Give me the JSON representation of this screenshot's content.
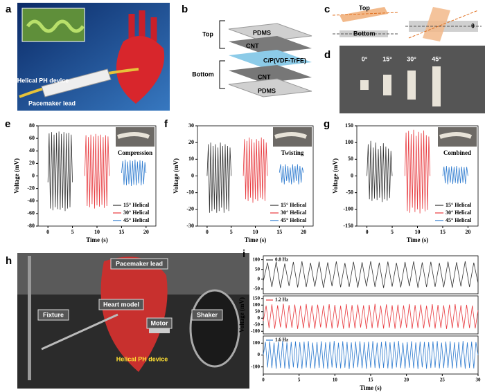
{
  "figure": {
    "letters": [
      "a",
      "b",
      "c",
      "d",
      "h"
    ],
    "a_labels": [
      "Helical PH device",
      "Pacemaker lead"
    ],
    "b_groups": [
      "Top",
      "Bottom"
    ],
    "b_layers": [
      "PDMS",
      "CNT",
      "C/P(VDF-TrFE)",
      "CNT",
      "PDMS"
    ],
    "c_labels": [
      "Top",
      "Bottom",
      "θ"
    ],
    "d_angles": [
      "0°",
      "15°",
      "30°",
      "45°"
    ],
    "h_labels": [
      "Pacemaker lead",
      "Heart model",
      "Fixture",
      "Motor",
      "Shaker",
      "Helical PH device"
    ]
  },
  "chart_data": [
    {
      "type": "line",
      "label": "e",
      "xlabel": "Time (s)",
      "ylabel": "Voltage (mV)",
      "annotation": "Compression",
      "legend": "lower right",
      "xlim": [
        -2,
        22
      ],
      "xticks": [
        0,
        5,
        10,
        15,
        20
      ],
      "ylim": [
        -80,
        80
      ],
      "yticks": [
        -80,
        -60,
        -40,
        -20,
        0,
        20,
        40,
        60,
        80
      ],
      "series": [
        {
          "name": "15° Helical",
          "color": "#333333",
          "x": [
            0,
            0.25,
            0.5,
            0.75,
            1,
            1.25,
            1.5,
            1.75,
            2,
            2.25,
            2.5,
            2.75,
            3,
            3.25,
            3.5,
            3.75,
            4,
            4.25,
            4.5,
            4.75,
            5
          ],
          "values": [
            -10,
            68,
            -52,
            70,
            -55,
            66,
            -50,
            69,
            -53,
            71,
            -54,
            67,
            -51,
            70,
            -56,
            68,
            -52,
            69,
            -50,
            66,
            -10
          ]
        },
        {
          "name": "30° Helical",
          "color": "#e8383d",
          "x": [
            7.5,
            7.75,
            8,
            8.25,
            8.5,
            8.75,
            9,
            9.25,
            9.5,
            9.75,
            10,
            10.25,
            10.5,
            10.75,
            11,
            11.25,
            11.5,
            11.75,
            12,
            12.25,
            12.5
          ],
          "values": [
            0,
            65,
            -48,
            62,
            -50,
            66,
            -45,
            63,
            -52,
            67,
            -47,
            64,
            -49,
            66,
            -46,
            62,
            -51,
            65,
            -48,
            63,
            0
          ]
        },
        {
          "name": "45° Helical",
          "color": "#2e7bcf",
          "x": [
            15,
            15.25,
            15.5,
            15.75,
            16,
            16.25,
            16.5,
            16.75,
            17,
            17.25,
            17.5,
            17.75,
            18,
            18.25,
            18.5,
            18.75,
            19,
            19.25,
            19.5,
            19.75,
            20
          ],
          "values": [
            5,
            24,
            -14,
            26,
            -15,
            23,
            -13,
            25,
            -16,
            24,
            -14,
            26,
            -15,
            23,
            -12,
            25,
            -15,
            24,
            -13,
            22,
            5
          ]
        }
      ]
    },
    {
      "type": "line",
      "label": "f",
      "xlabel": "Time (s)",
      "ylabel": "Voltage (mV)",
      "annotation": "Twisting",
      "legend": "lower right",
      "xlim": [
        -2,
        22
      ],
      "xticks": [
        0,
        5,
        10,
        15,
        20
      ],
      "ylim": [
        -30,
        30
      ],
      "yticks": [
        -30,
        -20,
        -10,
        0,
        10,
        20,
        30
      ],
      "series": [
        {
          "name": "15° Helical",
          "color": "#333333",
          "x": [
            0,
            0.25,
            0.5,
            0.75,
            1,
            1.25,
            1.5,
            1.75,
            2,
            2.25,
            2.5,
            2.75,
            3,
            3.25,
            3.5,
            3.75,
            4,
            4.25,
            4.5,
            4.75,
            5
          ],
          "values": [
            0,
            19,
            -22,
            20,
            -21,
            18,
            -20,
            19,
            -22,
            17,
            -21,
            20,
            -19,
            18,
            -22,
            19,
            -20,
            18,
            -21,
            17,
            0
          ]
        },
        {
          "name": "30° Helical",
          "color": "#e8383d",
          "x": [
            7.5,
            7.75,
            8,
            8.25,
            8.5,
            8.75,
            9,
            9.25,
            9.5,
            9.75,
            10,
            10.25,
            10.5,
            10.75,
            11,
            11.25,
            11.5,
            11.75,
            12,
            12.25,
            12.5
          ],
          "values": [
            0,
            22,
            -14,
            21,
            -15,
            23,
            -13,
            22,
            -16,
            20,
            -14,
            22,
            -15,
            21,
            -13,
            23,
            -14,
            22,
            -15,
            20,
            0
          ]
        },
        {
          "name": "45° Helical",
          "color": "#2e7bcf",
          "x": [
            15,
            15.25,
            15.5,
            15.75,
            16,
            16.25,
            16.5,
            16.75,
            17,
            17.25,
            17.5,
            17.75,
            18,
            18.25,
            18.5,
            18.75,
            19,
            19.25,
            19.5,
            19.75,
            20
          ],
          "values": [
            2,
            7,
            -4,
            6,
            -5,
            7,
            -3,
            6,
            -4,
            5,
            -5,
            7,
            -4,
            6,
            -3,
            7,
            -5,
            6,
            -4,
            5,
            2
          ]
        }
      ]
    },
    {
      "type": "line",
      "label": "g",
      "xlabel": "Time (s)",
      "ylabel": "Voltage (mV)",
      "annotation": "Combined",
      "legend": "lower right",
      "xlim": [
        -2,
        22
      ],
      "xticks": [
        0,
        5,
        10,
        15,
        20
      ],
      "ylim": [
        -150,
        150
      ],
      "yticks": [
        -150,
        -100,
        -50,
        0,
        50,
        100,
        150
      ],
      "series": [
        {
          "name": "15° Helical",
          "color": "#333333",
          "x": [
            0,
            0.25,
            0.5,
            0.75,
            1,
            1.25,
            1.5,
            1.75,
            2,
            2.25,
            2.5,
            2.75,
            3,
            3.25,
            3.5,
            3.75,
            4,
            4.25,
            4.5,
            4.75,
            5
          ],
          "values": [
            0,
            95,
            -70,
            105,
            -75,
            85,
            -68,
            100,
            -72,
            80,
            -65,
            90,
            -78,
            98,
            -70,
            88,
            -74,
            82,
            -66,
            75,
            0
          ]
        },
        {
          "name": "30° Helical",
          "color": "#e8383d",
          "x": [
            7.5,
            7.75,
            8,
            8.25,
            8.5,
            8.75,
            9,
            9.25,
            9.5,
            9.75,
            10,
            10.25,
            10.5,
            10.75,
            11,
            11.25,
            11.5,
            11.75,
            12,
            12.25,
            12.5
          ],
          "values": [
            0,
            130,
            -105,
            135,
            -110,
            125,
            -95,
            138,
            -108,
            120,
            -100,
            132,
            -112,
            128,
            -98,
            136,
            -106,
            122,
            -102,
            118,
            0
          ]
        },
        {
          "name": "45° Helical",
          "color": "#2e7bcf",
          "x": [
            15,
            15.25,
            15.5,
            15.75,
            16,
            16.25,
            16.5,
            16.75,
            17,
            17.25,
            17.5,
            17.75,
            18,
            18.25,
            18.5,
            18.75,
            19,
            19.25,
            19.5,
            19.75,
            20
          ],
          "values": [
            0,
            28,
            -22,
            30,
            -25,
            26,
            -20,
            29,
            -24,
            27,
            -21,
            30,
            -23,
            25,
            -22,
            28,
            -20,
            26,
            -24,
            27,
            0
          ]
        }
      ]
    },
    {
      "type": "line",
      "label": "i",
      "legend": "upper left",
      "xlim": [
        0,
        30
      ],
      "ylim": [
        -75,
        120
      ],
      "yticks": [
        -50,
        0,
        50,
        100
      ],
      "x": [
        0,
        0.6,
        1.2,
        1.8,
        2.4,
        3,
        3.6,
        4.2,
        4.8,
        5.4,
        6,
        6.6,
        7.2,
        7.8,
        8.4,
        9,
        9.6,
        10.2,
        10.8,
        11.4,
        12,
        12.6,
        13.2,
        13.8,
        14.4,
        15,
        15.6,
        16.2,
        16.8,
        17.4,
        18,
        18.6,
        19.2,
        19.8,
        20.4,
        21,
        21.6,
        22.2,
        22.8,
        23.4,
        24,
        24.6,
        25.2,
        25.8,
        26.4,
        27,
        27.6,
        28.2,
        28.8,
        29.4,
        30
      ],
      "series": [
        {
          "name": "0.8 Hz",
          "color": "#333333",
          "values": [
            -10,
            85,
            -40,
            90,
            -45,
            80,
            -35,
            88,
            -42,
            92,
            -40,
            84,
            -38,
            90,
            -44,
            86,
            -36,
            91,
            -41,
            83,
            -39,
            89,
            -43,
            87,
            -37,
            92,
            -40,
            85,
            -45,
            90,
            -38,
            84,
            -42,
            88,
            -36,
            91,
            -44,
            86,
            -40,
            89,
            -39,
            83,
            -41,
            90,
            -43,
            87,
            -37,
            92,
            -40,
            85,
            -20
          ]
        }
      ]
    },
    {
      "type": "line",
      "ylabel": "Voltage (mV)",
      "legend": "upper left",
      "xlim": [
        0,
        30
      ],
      "ylim": [
        -120,
        170
      ],
      "yticks": [
        -100,
        -50,
        0,
        50,
        100,
        150
      ],
      "x": [
        0,
        0.4,
        0.8,
        1.2,
        1.6,
        2,
        2.4,
        2.8,
        3.2,
        3.6,
        4,
        4.4,
        4.8,
        5.2,
        5.6,
        6,
        6.4,
        6.8,
        7.2,
        7.6,
        8,
        8.4,
        8.8,
        9.2,
        9.6,
        10,
        10.4,
        10.8,
        11.2,
        11.6,
        12,
        12.4,
        12.8,
        13.2,
        13.6,
        14,
        14.4,
        14.8,
        15.2,
        15.6,
        16,
        16.4,
        16.8,
        17.2,
        17.6,
        18,
        18.4,
        18.8,
        19.2,
        19.6,
        20,
        20.4,
        20.8,
        21.2,
        21.6,
        22,
        22.4,
        22.8,
        23.2,
        23.6,
        24,
        24.4,
        24.8,
        25.2,
        25.6,
        26,
        26.4,
        26.8,
        27.2,
        27.6,
        28,
        28.4,
        28.8,
        29.2,
        29.6,
        30
      ],
      "series": [
        {
          "name": "1.2 Hz",
          "color": "#e8383d",
          "values": [
            -20,
            95,
            -75,
            105,
            -80,
            98,
            -70,
            110,
            -78,
            100,
            -72,
            104,
            -82,
            96,
            -76,
            108,
            -74,
            99,
            -80,
            103,
            -70,
            97,
            -77,
            106,
            -79,
            101,
            -73,
            95,
            -81,
            107,
            -75,
            100,
            -78,
            104,
            -71,
            98,
            -83,
            102,
            -76,
            109,
            -74,
            96,
            -79,
            105,
            -72,
            99,
            -80,
            103,
            -77,
            97,
            -73,
            108,
            -81,
            100,
            -75,
            104,
            -78,
            95,
            -70,
            106,
            -79,
            101,
            -74,
            98,
            -82,
            103,
            -76,
            107,
            -72,
            99,
            -80,
            102,
            -75,
            96,
            -78,
            60
          ]
        }
      ]
    },
    {
      "type": "line",
      "xlabel": "Time (s)",
      "legend": "upper left",
      "xlim": [
        0,
        30
      ],
      "xticks": [
        0,
        5,
        10,
        15,
        20,
        25,
        30
      ],
      "ylim": [
        -160,
        160
      ],
      "yticks": [
        -100,
        0,
        100
      ],
      "x": [
        0,
        0.3,
        0.6,
        0.9,
        1.2,
        1.5,
        1.8,
        2.1,
        2.4,
        2.7,
        3,
        3.3,
        3.6,
        3.9,
        4.2,
        4.5,
        4.8,
        5.1,
        5.4,
        5.7,
        6,
        6.3,
        6.6,
        6.9,
        7.2,
        7.5,
        7.8,
        8.1,
        8.4,
        8.7,
        9,
        9.3,
        9.6,
        9.9,
        10.2,
        10.5,
        10.8,
        11.1,
        11.4,
        11.7,
        12,
        12.3,
        12.6,
        12.9,
        13.2,
        13.5,
        13.8,
        14.1,
        14.4,
        14.7,
        15,
        15.3,
        15.6,
        15.9,
        16.2,
        16.5,
        16.8,
        17.1,
        17.4,
        17.7,
        18,
        18.3,
        18.6,
        18.9,
        19.2,
        19.5,
        19.8,
        20.1,
        20.4,
        20.7,
        21,
        21.3,
        21.6,
        21.9,
        22.2,
        22.5,
        22.8,
        23.1,
        23.4,
        23.7,
        24,
        24.3,
        24.6,
        24.9,
        25.2,
        25.5,
        25.8,
        26.1,
        26.4,
        26.7,
        27,
        27.3,
        27.6,
        27.9,
        28.2,
        28.5,
        28.8,
        29.1,
        29.4,
        29.7,
        30
      ],
      "series": [
        {
          "name": "1.6 Hz",
          "color": "#2e7bcf",
          "values": [
            0,
            110,
            -105,
            115,
            -110,
            105,
            -115,
            112,
            -108,
            118,
            -112,
            106,
            -117,
            110,
            -104,
            114,
            -110,
            108,
            -116,
            112,
            -106,
            117,
            -111,
            105,
            -114,
            109,
            -108,
            116,
            -113,
            107,
            -115,
            111,
            -105,
            118,
            -109,
            104,
            -112,
            115,
            -107,
            110,
            -117,
            106,
            -110,
            113,
            -104,
            116,
            -111,
            108,
            -115,
            112,
            -106,
            117,
            -109,
            105,
            -113,
            110,
            -108,
            115,
            -112,
            107,
            -116,
            111,
            -105,
            118,
            -110,
            104,
            -114,
            109,
            -107,
            116,
            -111,
            106,
            -117,
            112,
            -104,
            110,
            -115,
            108,
            -109,
            114,
            -106,
            117,
            -112,
            105,
            -110,
            113,
            -108,
            116,
            -114,
            107,
            -111,
            110,
            -105,
            118,
            -116,
            106,
            -109,
            112,
            -113,
            108,
            0
          ]
        }
      ]
    }
  ]
}
